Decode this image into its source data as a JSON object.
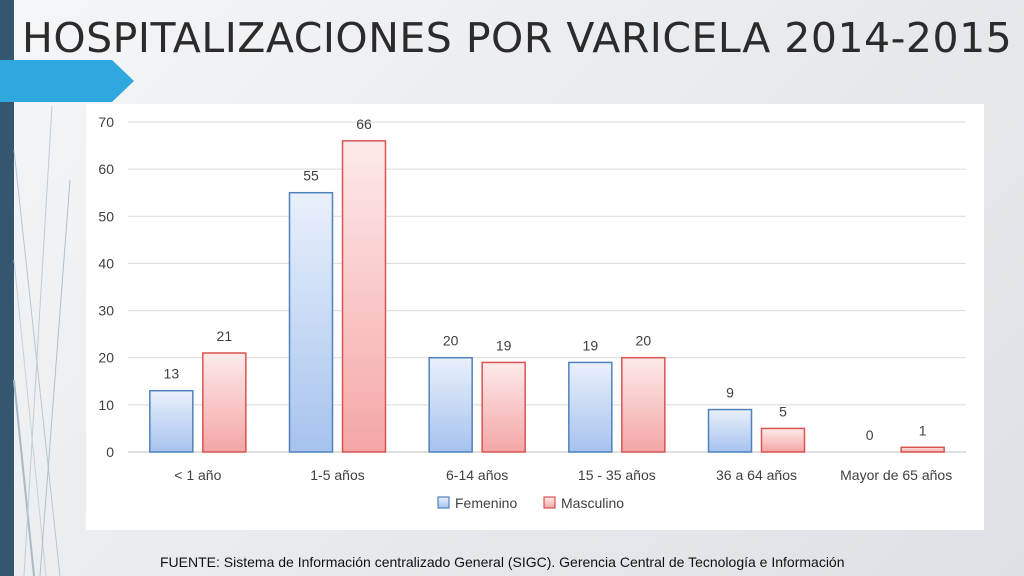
{
  "slide": {
    "title": "HOSPITALIZACIONES POR VARICELA 2014-2015",
    "source": "FUENTE: Sistema de Información centralizado General (SIGC). Gerencia Central de Tecnología e Información"
  },
  "theme": {
    "band_color": "#34566e",
    "arrow_color": "#2fa8df"
  },
  "chart_data": {
    "type": "bar",
    "title": "",
    "xlabel": "",
    "ylabel": "",
    "categories": [
      "< 1 año",
      "1-5 años",
      "6-14 años",
      "15 - 35 años",
      "36 a 64 años",
      "Mayor de 65 años"
    ],
    "series": [
      {
        "name": "Femenino",
        "values": [
          13,
          55,
          20,
          19,
          9,
          0
        ],
        "color": "#4f81bd",
        "fill_top": "#e9f0fb",
        "fill_bottom": "#a6c3ee"
      },
      {
        "name": "Masculino",
        "values": [
          21,
          66,
          19,
          20,
          5,
          1
        ],
        "color": "#d9534f",
        "fill_top": "#fdeaea",
        "fill_bottom": "#f4a6a6"
      }
    ],
    "ylim": [
      0,
      70
    ],
    "yticks": [
      0,
      10,
      20,
      30,
      40,
      50,
      60,
      70
    ],
    "grid": true,
    "legend_position": "bottom"
  }
}
